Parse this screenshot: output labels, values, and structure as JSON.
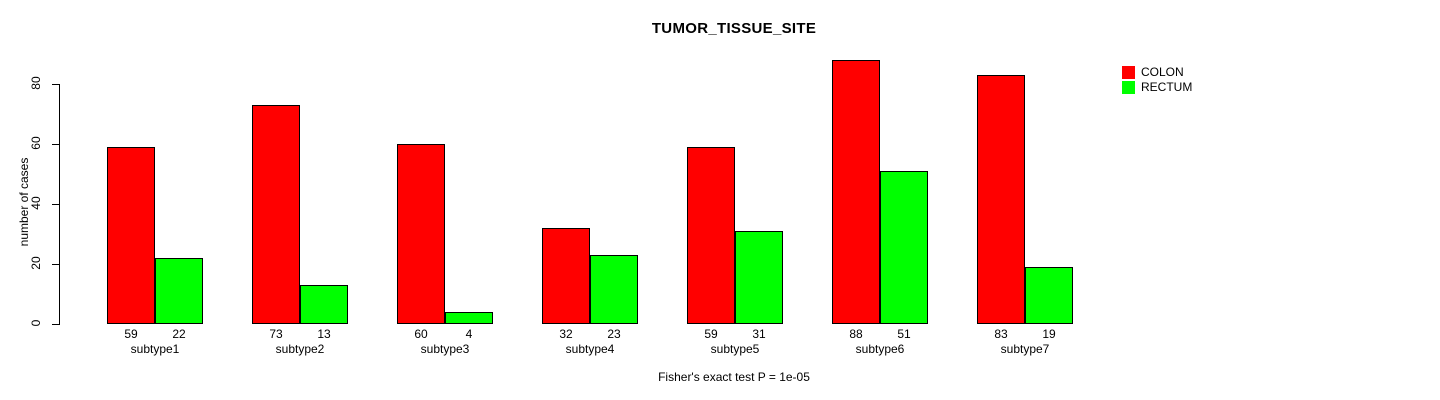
{
  "chart_data": {
    "type": "bar",
    "title": "TUMOR_TISSUE_SITE",
    "xlabel": "",
    "ylabel": "number of cases",
    "footnote": "Fisher's exact test P = 1e-05",
    "categories": [
      "subtype1",
      "subtype2",
      "subtype3",
      "subtype4",
      "subtype5",
      "subtype6",
      "subtype7"
    ],
    "series": [
      {
        "name": "COLON",
        "color": "#ff0000",
        "values": [
          59,
          73,
          60,
          32,
          59,
          88,
          83
        ]
      },
      {
        "name": "RECTUM",
        "color": "#00ff00",
        "values": [
          22,
          13,
          4,
          23,
          31,
          51,
          19
        ]
      }
    ],
    "ylim": [
      0,
      80
    ],
    "yticks": [
      0,
      20,
      40,
      60,
      80
    ],
    "grid": false,
    "legend_position": "top-right",
    "value_labels_shown": true,
    "bar_border_color": "#000000",
    "background_color": "#ffffff"
  }
}
